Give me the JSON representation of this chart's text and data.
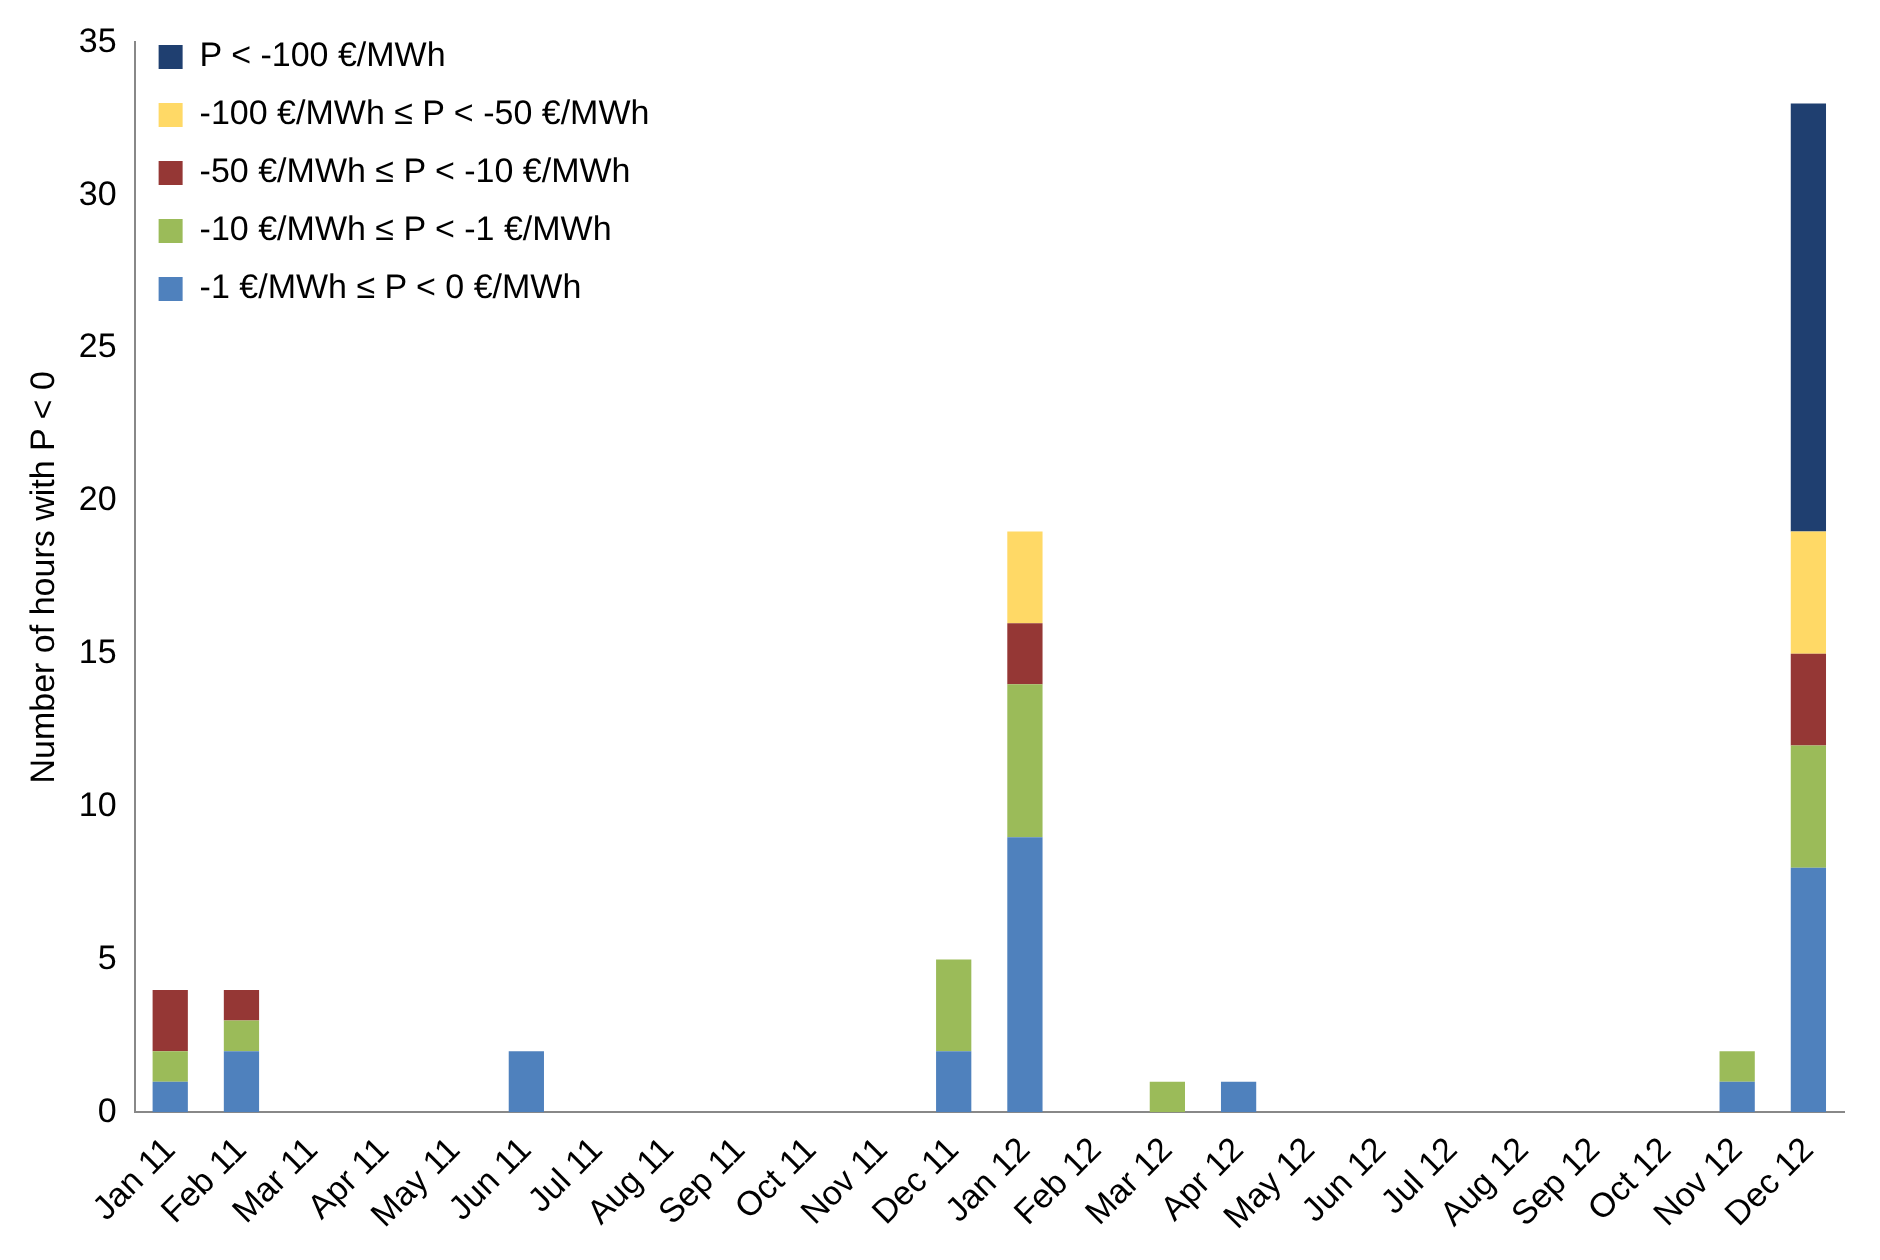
{
  "chart_data": {
    "type": "bar",
    "stacked": true,
    "ylabel": "Number of hours with P < 0",
    "categories": [
      "Jan 11",
      "Feb 11",
      "Mar 11",
      "Apr 11",
      "May 11",
      "Jun 11",
      "Jul 11",
      "Aug 11",
      "Sep 11",
      "Oct 11",
      "Nov 11",
      "Dec 11",
      "Jan 12",
      "Feb 12",
      "Mar 12",
      "Apr 12",
      "May 12",
      "Jun 12",
      "Jul 12",
      "Aug 12",
      "Sep 12",
      "Oct 12",
      "Nov 12",
      "Dec 12"
    ],
    "series": [
      {
        "name": "-1 €/MWh ≤ P < 0 €/MWh",
        "color": "#4f81bd",
        "values": [
          1,
          2,
          0,
          0,
          0,
          2,
          0,
          0,
          0,
          0,
          0,
          2,
          9,
          0,
          0,
          1,
          0,
          0,
          0,
          0,
          0,
          0,
          1,
          8
        ]
      },
      {
        "name": "-10 €/MWh ≤ P < -1 €/MWh",
        "color": "#9bbb59",
        "values": [
          1,
          1,
          0,
          0,
          0,
          0,
          0,
          0,
          0,
          0,
          0,
          3,
          5,
          0,
          1,
          0,
          0,
          0,
          0,
          0,
          0,
          0,
          1,
          4
        ]
      },
      {
        "name": "-50 €/MWh ≤ P < -10 €/MWh",
        "color": "#953735",
        "values": [
          2,
          1,
          0,
          0,
          0,
          0,
          0,
          0,
          0,
          0,
          0,
          0,
          2,
          0,
          0,
          0,
          0,
          0,
          0,
          0,
          0,
          0,
          0,
          3
        ]
      },
      {
        "name": "-100 €/MWh ≤ P < -50 €/MWh",
        "color": "#ffd966",
        "values": [
          0,
          0,
          0,
          0,
          0,
          0,
          0,
          0,
          0,
          0,
          0,
          0,
          3,
          0,
          0,
          0,
          0,
          0,
          0,
          0,
          0,
          0,
          0,
          4
        ]
      },
      {
        "name": "P < -100 €/MWh",
        "color": "#1f3f70",
        "values": [
          0,
          0,
          0,
          0,
          0,
          0,
          0,
          0,
          0,
          0,
          0,
          0,
          0,
          0,
          0,
          0,
          0,
          0,
          0,
          0,
          0,
          0,
          0,
          14
        ]
      }
    ],
    "ylim": [
      0,
      35
    ],
    "yticks": [
      0,
      5,
      10,
      15,
      20,
      25,
      30,
      35
    ],
    "grid": false,
    "legend": "top left"
  }
}
